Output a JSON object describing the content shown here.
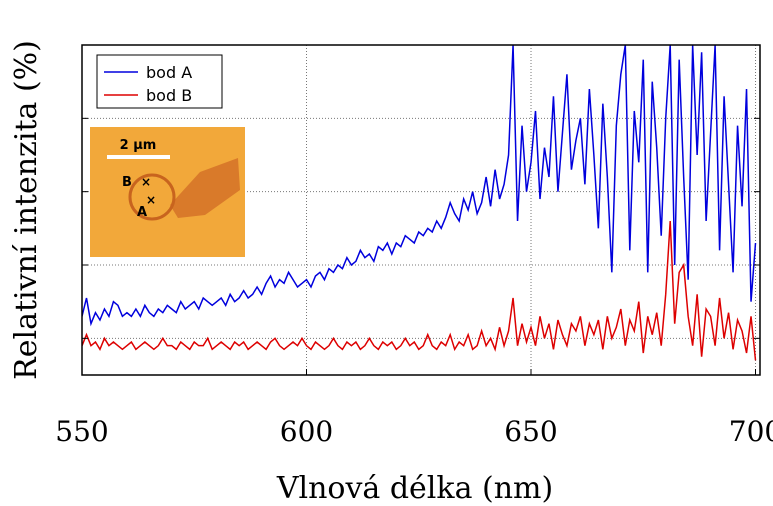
{
  "chart_data": {
    "type": "line",
    "x_label": "Vlnová délka (nm)",
    "y_label": "Relativní intenzita (%)",
    "x": [
      550,
      551,
      552,
      553,
      554,
      555,
      556,
      557,
      558,
      559,
      560,
      561,
      562,
      563,
      564,
      565,
      566,
      567,
      568,
      569,
      570,
      571,
      572,
      573,
      574,
      575,
      576,
      577,
      578,
      579,
      580,
      581,
      582,
      583,
      584,
      585,
      586,
      587,
      588,
      589,
      590,
      591,
      592,
      593,
      594,
      595,
      596,
      597,
      598,
      599,
      600,
      601,
      602,
      603,
      604,
      605,
      606,
      607,
      608,
      609,
      610,
      611,
      612,
      613,
      614,
      615,
      616,
      617,
      618,
      619,
      620,
      621,
      622,
      623,
      624,
      625,
      626,
      627,
      628,
      629,
      630,
      631,
      632,
      633,
      634,
      635,
      636,
      637,
      638,
      639,
      640,
      641,
      642,
      643,
      644,
      645,
      646,
      647,
      648,
      649,
      650,
      651,
      652,
      653,
      654,
      655,
      656,
      657,
      658,
      659,
      660,
      661,
      662,
      663,
      664,
      665,
      666,
      667,
      668,
      669,
      670,
      671,
      672,
      673,
      674,
      675,
      676,
      677,
      678,
      679,
      680,
      681,
      682,
      683,
      684,
      685,
      686,
      687,
      688,
      689,
      690,
      691,
      692,
      693,
      694,
      695,
      696,
      697,
      698,
      699,
      700
    ],
    "series": [
      {
        "name": "bod A",
        "color": "#0000dd",
        "values": [
          0.3,
          0.55,
          0.2,
          0.35,
          0.25,
          0.4,
          0.3,
          0.5,
          0.45,
          0.3,
          0.35,
          0.3,
          0.4,
          0.3,
          0.45,
          0.35,
          0.3,
          0.4,
          0.35,
          0.45,
          0.4,
          0.35,
          0.5,
          0.4,
          0.45,
          0.5,
          0.4,
          0.55,
          0.5,
          0.45,
          0.5,
          0.55,
          0.45,
          0.6,
          0.5,
          0.55,
          0.65,
          0.55,
          0.6,
          0.7,
          0.6,
          0.75,
          0.85,
          0.7,
          0.8,
          0.75,
          0.9,
          0.8,
          0.7,
          0.75,
          0.8,
          0.7,
          0.85,
          0.9,
          0.8,
          0.95,
          0.9,
          1.0,
          0.95,
          1.1,
          1.0,
          1.05,
          1.2,
          1.1,
          1.15,
          1.05,
          1.25,
          1.2,
          1.3,
          1.15,
          1.3,
          1.25,
          1.4,
          1.35,
          1.3,
          1.45,
          1.4,
          1.5,
          1.45,
          1.6,
          1.5,
          1.65,
          1.85,
          1.7,
          1.6,
          1.9,
          1.75,
          2.0,
          1.7,
          1.85,
          2.2,
          1.8,
          2.3,
          1.9,
          2.1,
          2.5,
          4.0,
          1.6,
          2.9,
          2.0,
          2.4,
          3.1,
          1.9,
          2.6,
          2.2,
          3.3,
          2.0,
          2.8,
          3.6,
          2.3,
          2.7,
          3.0,
          2.1,
          3.4,
          2.5,
          1.5,
          3.2,
          2.2,
          0.9,
          2.9,
          3.6,
          4.0,
          1.2,
          3.1,
          2.4,
          3.8,
          0.9,
          3.5,
          2.6,
          1.4,
          3.0,
          4.0,
          1.0,
          3.8,
          2.2,
          0.8,
          4.0,
          2.5,
          3.9,
          1.6,
          2.8,
          4.0,
          1.2,
          3.3,
          2.1,
          0.9,
          2.9,
          1.8,
          3.4,
          0.5,
          1.3
        ]
      },
      {
        "name": "bod B",
        "color": "#dd0000",
        "values": [
          -0.1,
          0.05,
          -0.1,
          -0.05,
          -0.15,
          0.0,
          -0.1,
          -0.05,
          -0.1,
          -0.15,
          -0.1,
          -0.05,
          -0.15,
          -0.1,
          -0.05,
          -0.1,
          -0.15,
          -0.1,
          0.0,
          -0.1,
          -0.1,
          -0.15,
          -0.05,
          -0.1,
          -0.15,
          -0.05,
          -0.1,
          -0.1,
          0.0,
          -0.15,
          -0.1,
          -0.05,
          -0.1,
          -0.15,
          -0.05,
          -0.1,
          -0.05,
          -0.15,
          -0.1,
          -0.05,
          -0.1,
          -0.15,
          -0.05,
          0.0,
          -0.1,
          -0.15,
          -0.1,
          -0.05,
          -0.1,
          0.0,
          -0.1,
          -0.15,
          -0.05,
          -0.1,
          -0.15,
          -0.1,
          0.0,
          -0.1,
          -0.15,
          -0.05,
          -0.1,
          -0.05,
          -0.15,
          -0.1,
          0.0,
          -0.1,
          -0.15,
          -0.05,
          -0.1,
          -0.05,
          -0.15,
          -0.1,
          0.0,
          -0.1,
          -0.05,
          -0.15,
          -0.1,
          0.05,
          -0.1,
          -0.15,
          -0.05,
          -0.1,
          0.05,
          -0.15,
          -0.05,
          -0.1,
          0.05,
          -0.15,
          -0.1,
          0.1,
          -0.1,
          0.0,
          -0.15,
          0.15,
          -0.1,
          0.1,
          0.55,
          -0.1,
          0.2,
          -0.05,
          0.15,
          -0.1,
          0.3,
          0.0,
          0.2,
          -0.15,
          0.25,
          0.05,
          -0.1,
          0.2,
          0.1,
          0.3,
          -0.1,
          0.2,
          0.05,
          0.25,
          -0.15,
          0.3,
          0.0,
          0.15,
          0.4,
          -0.1,
          0.25,
          0.1,
          0.5,
          -0.2,
          0.3,
          0.05,
          0.35,
          -0.1,
          0.6,
          1.6,
          0.2,
          0.9,
          1.0,
          0.3,
          -0.1,
          0.6,
          -0.25,
          0.4,
          0.3,
          -0.1,
          0.55,
          0.0,
          0.35,
          -0.15,
          0.25,
          0.1,
          -0.2,
          0.3,
          -0.3
        ]
      }
    ],
    "xlim": [
      550,
      701
    ],
    "ylim": [
      -0.5,
      4.0
    ],
    "xticks": [
      550,
      600,
      650,
      700
    ],
    "yticks": [
      0,
      1,
      2,
      3,
      4
    ],
    "grid": true,
    "legend": "upper-left",
    "inset": {
      "scale_label": "2 μm",
      "point_labels": [
        "B",
        "A"
      ]
    }
  }
}
